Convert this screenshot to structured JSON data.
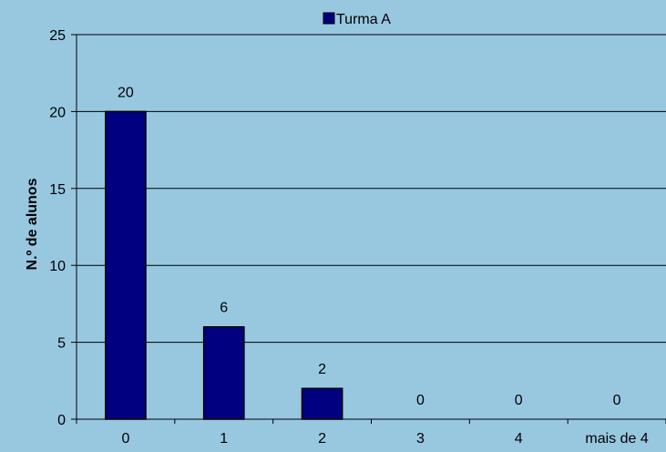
{
  "chart_data": {
    "type": "bar",
    "title": "",
    "xlabel": "",
    "ylabel": "N.º de alunos",
    "categories": [
      "0",
      "1",
      "2",
      "3",
      "4",
      "mais de 4"
    ],
    "series": [
      {
        "name": "Turma A",
        "values": [
          20,
          6,
          2,
          0,
          0,
          0
        ],
        "color": "#000080"
      }
    ],
    "ylim": [
      0,
      25
    ],
    "yticks": [
      "0",
      "5",
      "10",
      "15",
      "20",
      "25"
    ],
    "grid": true,
    "legend_position": "top",
    "data_labels": [
      "20",
      "6",
      "2",
      "0",
      "0",
      "0"
    ],
    "colors": {
      "background": "#98c8e0",
      "bar": "#000080",
      "grid": "#000000"
    }
  }
}
